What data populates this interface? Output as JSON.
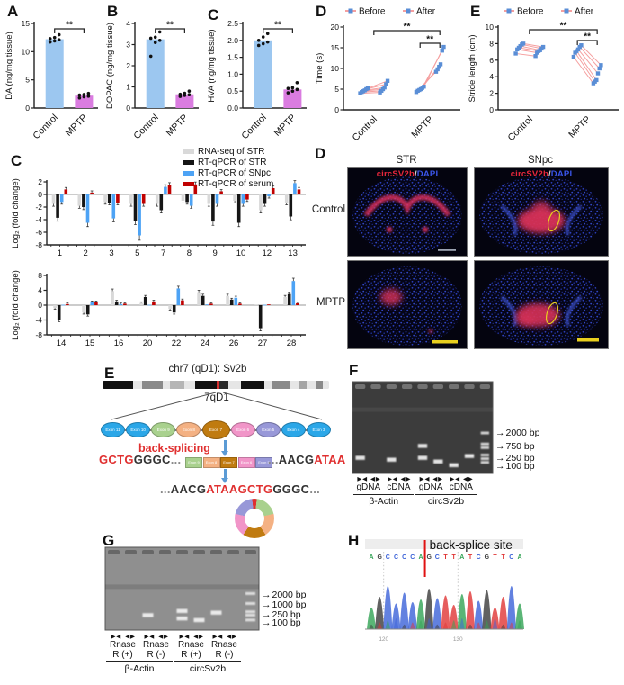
{
  "panel_labels": {
    "A": "A",
    "B": "B",
    "C1": "C",
    "D1": "D",
    "E1": "E",
    "C2": "C",
    "D2": "D",
    "E2": "E",
    "F": "F",
    "G": "G",
    "H": "H"
  },
  "colors": {
    "bar_blue": "#9cc7f0",
    "bar_magenta": "#da7ce0",
    "dot": "#111111",
    "marker_blue": "#5a8ed6",
    "line_pink": "#f59f9f",
    "series_gray": "#d9d9d9",
    "series_black": "#151515",
    "series_blue": "#4da3f5",
    "series_red": "#c00000",
    "sig": "#222222",
    "yellow": "#e8cf1e"
  },
  "chart_data": [
    {
      "id": "A",
      "type": "bar",
      "ylabel": "DA (ng/mg tissue)",
      "categories": [
        "Control",
        "MPTP"
      ],
      "values": [
        12.2,
        2.2
      ],
      "points": [
        [
          11.7,
          11.9,
          12.1,
          12.3,
          12.5,
          13.0
        ],
        [
          1.8,
          2.0,
          2.1,
          2.3,
          2.4,
          2.6
        ]
      ],
      "ylim": [
        0,
        15
      ],
      "yticks": [
        0,
        5,
        10,
        15
      ],
      "sig": "**"
    },
    {
      "id": "B",
      "type": "bar",
      "ylabel": "DOPAC (ng/mg tissue)",
      "categories": [
        "Control",
        "MPTP"
      ],
      "values": [
        3.25,
        0.65
      ],
      "points": [
        [
          2.45,
          3.1,
          3.2,
          3.3,
          3.35,
          3.6
        ],
        [
          0.55,
          0.6,
          0.63,
          0.65,
          0.7,
          0.8
        ]
      ],
      "ylim": [
        0,
        4
      ],
      "yticks": [
        0,
        1,
        2,
        3,
        4
      ],
      "sig": "**"
    },
    {
      "id": "C1",
      "type": "bar",
      "ylabel": "HVA (ng/mg tissue)",
      "categories": [
        "Control",
        "MPTP"
      ],
      "values": [
        2.0,
        0.55
      ],
      "points": [
        [
          1.85,
          1.9,
          1.95,
          2.0,
          2.1,
          2.2
        ],
        [
          0.45,
          0.5,
          0.55,
          0.58,
          0.6,
          0.75
        ]
      ],
      "ylim": [
        0,
        2.5
      ],
      "yticks": [
        0,
        0.5,
        1,
        1.5,
        2,
        2.5
      ],
      "tick_decimals": 1,
      "sig": "**"
    },
    {
      "id": "D1",
      "type": "paired",
      "ylabel": "Time (s)",
      "legend": [
        "Before",
        "After"
      ],
      "categories": [
        "Control",
        "MPTP"
      ],
      "pairs": [
        [
          [
            4.0,
            4.2
          ],
          [
            4.3,
            4.6
          ],
          [
            4.5,
            5.0
          ],
          [
            4.7,
            5.4
          ],
          [
            5.0,
            6.2
          ],
          [
            5.2,
            7.0
          ]
        ],
        [
          [
            4.3,
            9.2
          ],
          [
            4.6,
            9.8
          ],
          [
            4.8,
            10.4
          ],
          [
            5.0,
            11.0
          ],
          [
            5.3,
            14.3
          ],
          [
            5.6,
            15.2
          ]
        ]
      ],
      "ylim": [
        0,
        20
      ],
      "yticks": [
        0,
        5,
        10,
        15,
        20
      ],
      "sig_outer": "**",
      "sig_inner": "**"
    },
    {
      "id": "E1",
      "type": "paired",
      "ylabel": "Stride length (cm)",
      "legend": [
        "Before",
        "After"
      ],
      "categories": [
        "Control",
        "MPTP"
      ],
      "pairs": [
        [
          [
            6.8,
            6.5
          ],
          [
            7.3,
            6.9
          ],
          [
            7.5,
            7.1
          ],
          [
            7.7,
            7.2
          ],
          [
            7.9,
            7.4
          ],
          [
            8.0,
            7.6
          ]
        ],
        [
          [
            6.4,
            3.2
          ],
          [
            6.9,
            3.4
          ],
          [
            7.1,
            3.6
          ],
          [
            7.3,
            4.4
          ],
          [
            7.6,
            5.0
          ],
          [
            7.8,
            5.4
          ]
        ]
      ],
      "ylim": [
        0,
        10
      ],
      "yticks": [
        0,
        2,
        4,
        6,
        8,
        10
      ],
      "sig_outer": "**",
      "sig_inner": "**"
    },
    {
      "id": "C2a",
      "type": "grouped-bar",
      "ylabel": "Log₂ (fold change)",
      "categories": [
        "1",
        "2",
        "3",
        "5",
        "7",
        "8",
        "9",
        "10",
        "12",
        "13"
      ],
      "ylim": [
        -8,
        2
      ],
      "yticks": [
        2,
        0,
        -2,
        -4,
        -6,
        -8
      ],
      "series": [
        {
          "name": "RNA-seq of STR",
          "color": "series_gray",
          "values": [
            -1.5,
            -1.8,
            -1.2,
            -1.5,
            -1.5,
            -1.0,
            -1.5,
            -1.0,
            -2.5,
            -1.3
          ]
        },
        {
          "name": "RT-qPCR of STR",
          "color": "series_black",
          "values": [
            -3.7,
            -2.0,
            -1.3,
            -4.2,
            -2.5,
            -1.2,
            -4.3,
            -4.5,
            -1.5,
            -3.5
          ]
        },
        {
          "name": "RT-qPCR of SNpc",
          "color": "series_blue",
          "values": [
            -1.2,
            -4.5,
            -3.8,
            -6.5,
            1.2,
            -1.8,
            -1.5,
            -1.5,
            -0.3,
            1.8
          ]
        },
        {
          "name": "RT-qPCR of serum",
          "color": "series_red",
          "values": [
            0.8,
            0.3,
            -1.3,
            -1.5,
            1.5,
            1.6,
            0.5,
            -0.8,
            1.0,
            0.8
          ]
        }
      ]
    },
    {
      "id": "C2b",
      "type": "grouped-bar",
      "ylabel": "Log₂ (fold change)",
      "categories": [
        "14",
        "15",
        "16",
        "20",
        "22",
        "24",
        "26",
        "27",
        "28"
      ],
      "ylim": [
        -8,
        8
      ],
      "yticks": [
        8,
        4,
        0,
        -4,
        -8
      ],
      "series": [
        {
          "name": "RNA-seq of STR",
          "color": "series_gray",
          "values": [
            -0.8,
            -2.0,
            3.8,
            0.6,
            -1.0,
            3.5,
            2.5,
            0.2,
            2.2
          ]
        },
        {
          "name": "RT-qPCR of STR",
          "color": "series_black",
          "values": [
            -3.9,
            -2.5,
            1.0,
            2.2,
            -2.0,
            2.5,
            1.5,
            -6.2,
            3.0
          ]
        },
        {
          "name": "RT-qPCR of SNpc",
          "color": "series_blue",
          "values": [
            0.1,
            0.8,
            0.3,
            0.1,
            4.5,
            0.2,
            2.0,
            0.1,
            6.5
          ]
        },
        {
          "name": "RT-qPCR of serum",
          "color": "series_red",
          "values": [
            0.3,
            0.8,
            0.4,
            1.0,
            1.3,
            0.4,
            0.4,
            0.2,
            0.5
          ]
        }
      ]
    }
  ],
  "histology": {
    "columns": [
      "STR",
      "SNpc"
    ],
    "rows": [
      "Control",
      "MPTP"
    ],
    "overlay": {
      "gene": "circSV2b",
      "sep": "/",
      "stain": "DAPI"
    },
    "gene_color": "#e8273c",
    "stain_color": "#3a55e8"
  },
  "diagram": {
    "title": "chr7 (qD1): Sv2b",
    "locus": "7qD1",
    "back_splice_label": "back-splicing",
    "exons": [
      {
        "label": "Exon 11",
        "color": "#2ba7e8"
      },
      {
        "label": "Exon 10",
        "color": "#2ba7e8"
      },
      {
        "label": "Exon 9",
        "color": "#a9d18e"
      },
      {
        "label": "Exon 8",
        "color": "#f4b183"
      },
      {
        "label": "Exon 7",
        "color": "#c07b10"
      },
      {
        "label": "Exon 6",
        "color": "#f195c8"
      },
      {
        "label": "Exon 5",
        "color": "#9898d8"
      },
      {
        "label": "Exon 4",
        "color": "#2ba7e8"
      },
      {
        "label": "Exon 3",
        "color": "#2ba7e8"
      }
    ],
    "circle_exons": [
      {
        "label": "Exon 9",
        "color": "#a9d18e"
      },
      {
        "label": "Exon 8",
        "color": "#f4b183"
      },
      {
        "label": "Exon 7",
        "color": "#c07b10"
      },
      {
        "label": "Exon 6",
        "color": "#f195c8"
      },
      {
        "label": "Exon 5",
        "color": "#9898d8"
      }
    ],
    "junction_color": "#e03030",
    "seq_left": {
      "red": "GCTG",
      "black": "GGGC",
      "dots": "..."
    },
    "seq_right": {
      "dots": "...",
      "black": "AACG",
      "red": "ATAA"
    },
    "seq_joined": {
      "pre": "...",
      "black1": "AACG",
      "red": "ATAAGCTG",
      "black2": "GGGC",
      "post": "..."
    },
    "ideogram": [
      [
        34,
        "#111111"
      ],
      [
        10,
        "#e6e6e6"
      ],
      [
        22,
        "#8a8a8a"
      ],
      [
        8,
        "#e6e6e6"
      ],
      [
        16,
        "#b5b5b5"
      ],
      [
        12,
        "#e6e6e6"
      ],
      [
        24,
        "#111111"
      ],
      [
        3,
        "#d43030"
      ],
      [
        10,
        "#2a2a2a"
      ],
      [
        14,
        "#e6e6e6"
      ],
      [
        26,
        "#111111"
      ],
      [
        9,
        "#e6e6e6"
      ],
      [
        18,
        "#8a8a8a"
      ],
      [
        10,
        "#e6e6e6"
      ],
      [
        9,
        "#a5a5a5"
      ],
      [
        10,
        "#e6e6e6"
      ],
      [
        8,
        "#8a8a8a"
      ],
      [
        7,
        "#e6e6e6"
      ]
    ]
  },
  "gels": [
    {
      "id": "F",
      "lanes": [
        [
          0.83
        ],
        [],
        [
          0.85
        ],
        [],
        [
          0.7,
          0.83
        ],
        [
          0.87
        ],
        [
          0.91
        ],
        [
          0.81
        ]
      ],
      "ladder": [
        0.56,
        0.68,
        0.72,
        0.8,
        0.84,
        0.88
      ],
      "markers": [
        {
          "label": "2000 bp",
          "f": 0.56
        },
        {
          "label": "750 bp",
          "f": 0.71
        },
        {
          "label": "250 bp",
          "f": 0.83
        },
        {
          "label": "100 bp",
          "f": 0.92
        }
      ],
      "pair_labels": [
        [
          "gDNA"
        ],
        [
          "cDNA"
        ],
        [
          "gDNA"
        ],
        [
          "cDNA"
        ]
      ],
      "group_labels": [
        "β-Actin",
        "circSv2b"
      ]
    },
    {
      "id": "G",
      "lanes": [
        [],
        [],
        [
          0.82
        ],
        [],
        [
          0.77,
          0.86
        ],
        [
          0.88
        ],
        [
          0.79
        ],
        []
      ],
      "ladder": [
        0.56,
        0.68,
        0.78,
        0.82,
        0.88
      ],
      "markers": [
        {
          "label": "2000 bp",
          "f": 0.58
        },
        {
          "label": "1000 bp",
          "f": 0.7
        },
        {
          "label": "250 bp",
          "f": 0.82
        },
        {
          "label": "100 bp",
          "f": 0.91
        }
      ],
      "pair_labels": [
        [
          "Rnase",
          "R (+)"
        ],
        [
          "Rnase",
          "R (-)"
        ],
        [
          "Rnase",
          "R (+)"
        ],
        [
          "Rnase",
          "R (-)"
        ]
      ],
      "group_labels": [
        "β-Actin",
        "circSv2b"
      ]
    }
  ],
  "primer_icons": {
    "convergent": "▶ ◀",
    "divergent": "◀ ▶"
  },
  "sanger": {
    "title": "back-splice site",
    "sequence": "AGCCCCAGCTTATCGTTCA",
    "splice_after_index": 6,
    "base_colors": {
      "A": "#31a354",
      "C": "#3b62d8",
      "G": "#3a3a3a",
      "T": "#e03535"
    },
    "positions": [
      {
        "label": "120",
        "index": 1
      },
      {
        "label": "130",
        "index": 10
      }
    ]
  }
}
